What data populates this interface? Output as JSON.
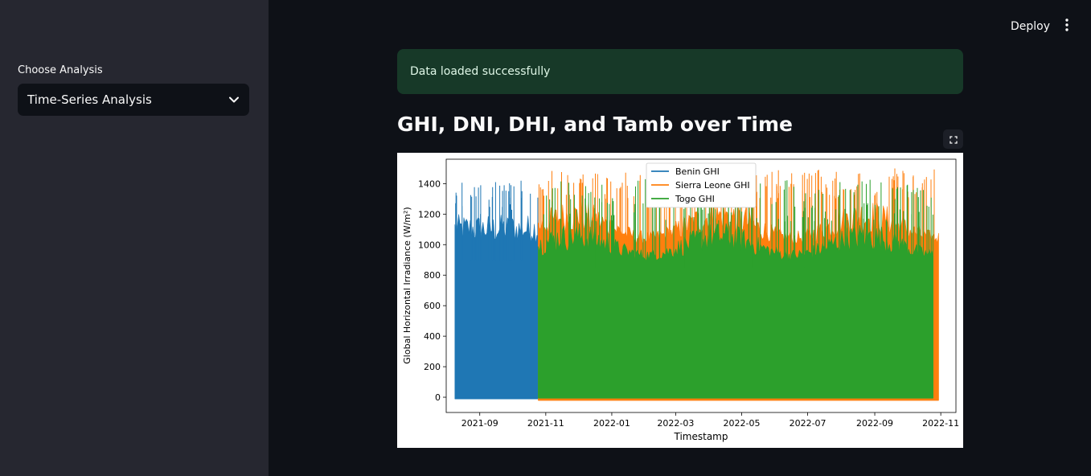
{
  "header": {
    "deploy_label": "Deploy",
    "menu_icon": "vertical-ellipsis-icon"
  },
  "sidebar": {
    "label": "Choose Analysis",
    "select": {
      "value": "Time-Series Analysis",
      "icon": "chevron-down-icon"
    }
  },
  "main": {
    "alert": "Data loaded successfully",
    "title": "GHI, DNI, DHI, and Tamb over Time",
    "fullscreen_icon": "fullscreen-icon"
  },
  "colors": {
    "benin": "#1f77b4",
    "sierra_leone": "#ff7f0e",
    "togo": "#2ca02c",
    "alert_bg": "#173928",
    "sidebar_bg": "#262730",
    "app_bg": "#0e1117"
  },
  "chart_data": {
    "type": "line",
    "xlabel": "Timestamp",
    "ylabel": "Global Horizontal Irradiance (W/m²)",
    "x_range": [
      "2021-08-01",
      "2022-11-15"
    ],
    "ylim": [
      -100,
      1560
    ],
    "x_ticks": [
      "2021-09",
      "2021-11",
      "2022-01",
      "2022-03",
      "2022-05",
      "2022-07",
      "2022-09",
      "2022-11"
    ],
    "y_ticks": [
      0,
      200,
      400,
      600,
      800,
      1000,
      1200,
      1400
    ],
    "legend_position": "top-center",
    "grid": false,
    "series": [
      {
        "name": "Benin GHI",
        "color": "#1f77b4",
        "start": "2021-08-09",
        "end": "2021-10-25",
        "min": -10,
        "typical_peak": [
          900,
          1200
        ],
        "max": 1420
      },
      {
        "name": "Sierra Leone GHI",
        "color": "#ff7f0e",
        "start": "2021-10-25",
        "end": "2022-10-30",
        "min": -20,
        "typical_peak": [
          950,
          1300
        ],
        "max": 1500
      },
      {
        "name": "Togo GHI",
        "color": "#2ca02c",
        "start": "2021-10-25",
        "end": "2022-10-25",
        "min": -5,
        "typical_peak": [
          850,
          1150
        ],
        "max": 1430
      }
    ]
  }
}
